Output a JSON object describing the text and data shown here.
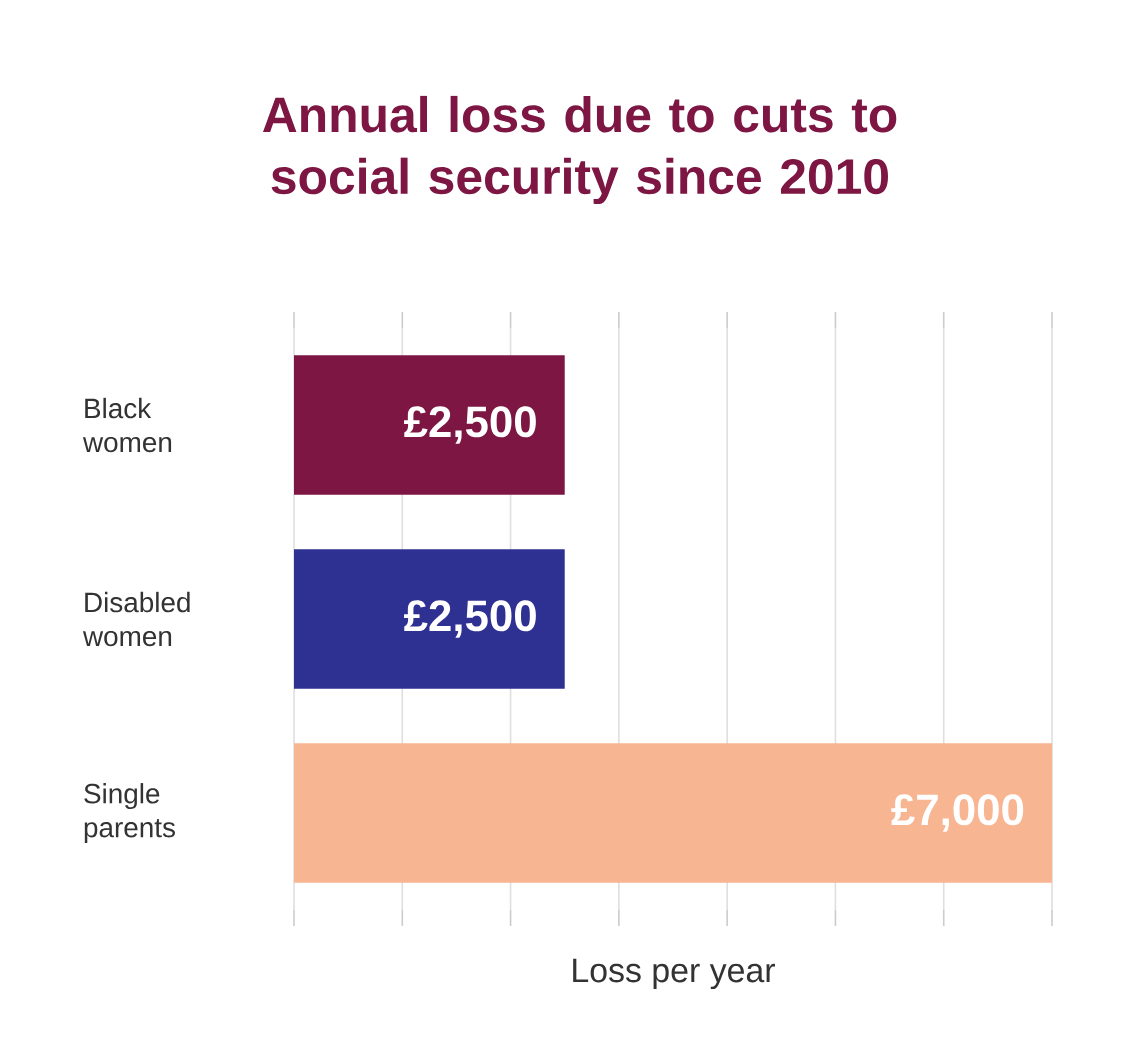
{
  "chart_data": {
    "type": "bar",
    "orientation": "horizontal",
    "title": "Annual loss due to cuts to social security since 2010",
    "xlabel": "Loss per year",
    "categories": [
      "Black women",
      "Disabled women",
      "Single parents"
    ],
    "values": [
      2500,
      2500,
      7000
    ],
    "value_labels": [
      "£2,500",
      "£2,500",
      "£7,000"
    ],
    "colors": [
      "#7d1642",
      "#2e3192",
      "#f8b592"
    ],
    "xlim": [
      0,
      7000
    ],
    "xticks": [
      {
        "value": 0,
        "label": null
      },
      {
        "value": 1000,
        "label": null
      },
      {
        "value": 2000,
        "label": null
      },
      {
        "value": 3000,
        "label": null
      },
      {
        "value": 4000,
        "label": null
      },
      {
        "value": 5000,
        "label": null
      },
      {
        "value": 6000,
        "label": null
      },
      {
        "value": 7000,
        "label": null
      }
    ],
    "tick_labels": "y",
    "grid": "x"
  }
}
